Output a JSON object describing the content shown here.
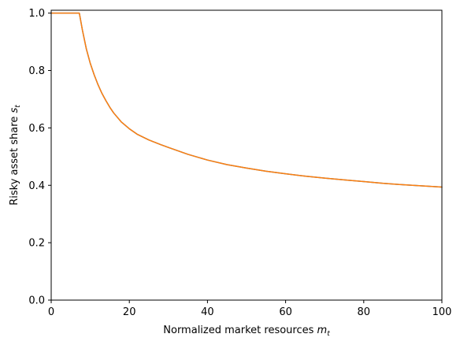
{
  "chart_data": {
    "type": "line",
    "xlabel": {
      "main": "Normalized market resources ",
      "var": "m",
      "sub": "t"
    },
    "ylabel": {
      "main": "Risky asset share ",
      "var": "s",
      "sub": "t"
    },
    "xlim": [
      0,
      100
    ],
    "ylim": [
      0,
      1.01
    ],
    "x_ticks": [
      0,
      20,
      40,
      60,
      80,
      100
    ],
    "x_tick_labels": [
      "0",
      "20",
      "40",
      "60",
      "80",
      "100"
    ],
    "y_ticks": [
      0.0,
      0.2,
      0.4,
      0.6,
      0.8,
      1.0
    ],
    "y_tick_labels": [
      "0.0",
      "0.2",
      "0.4",
      "0.6",
      "0.8",
      "1.0"
    ],
    "grid": false,
    "series": [
      {
        "color": "#1f77b4",
        "x": [
          0,
          2,
          4,
          6,
          7.2,
          8,
          9,
          10,
          11,
          12,
          13,
          14,
          15,
          16,
          18,
          20,
          22,
          25,
          28,
          30,
          35,
          40,
          45,
          50,
          55,
          60,
          65,
          70,
          75,
          80,
          85,
          90,
          95,
          100
        ],
        "y": [
          1.0,
          1.0,
          1.0,
          1.0,
          1.0,
          0.94,
          0.875,
          0.825,
          0.785,
          0.75,
          0.72,
          0.695,
          0.672,
          0.652,
          0.62,
          0.597,
          0.578,
          0.558,
          0.542,
          0.532,
          0.508,
          0.488,
          0.472,
          0.46,
          0.449,
          0.44,
          0.432,
          0.425,
          0.419,
          0.413,
          0.407,
          0.402,
          0.398,
          0.394
        ]
      },
      {
        "color": "#ff7f0e",
        "x": [
          0,
          2,
          4,
          6,
          7.2,
          8,
          9,
          10,
          11,
          12,
          13,
          14,
          15,
          16,
          18,
          20,
          22,
          25,
          28,
          30,
          35,
          40,
          45,
          50,
          55,
          60,
          65,
          70,
          75,
          80,
          85,
          90,
          95,
          100
        ],
        "y": [
          1.0,
          1.0,
          1.0,
          1.0,
          1.0,
          0.94,
          0.875,
          0.825,
          0.785,
          0.75,
          0.72,
          0.695,
          0.672,
          0.652,
          0.62,
          0.597,
          0.578,
          0.558,
          0.542,
          0.532,
          0.508,
          0.488,
          0.472,
          0.46,
          0.449,
          0.44,
          0.432,
          0.425,
          0.419,
          0.413,
          0.407,
          0.402,
          0.398,
          0.394
        ]
      }
    ]
  }
}
